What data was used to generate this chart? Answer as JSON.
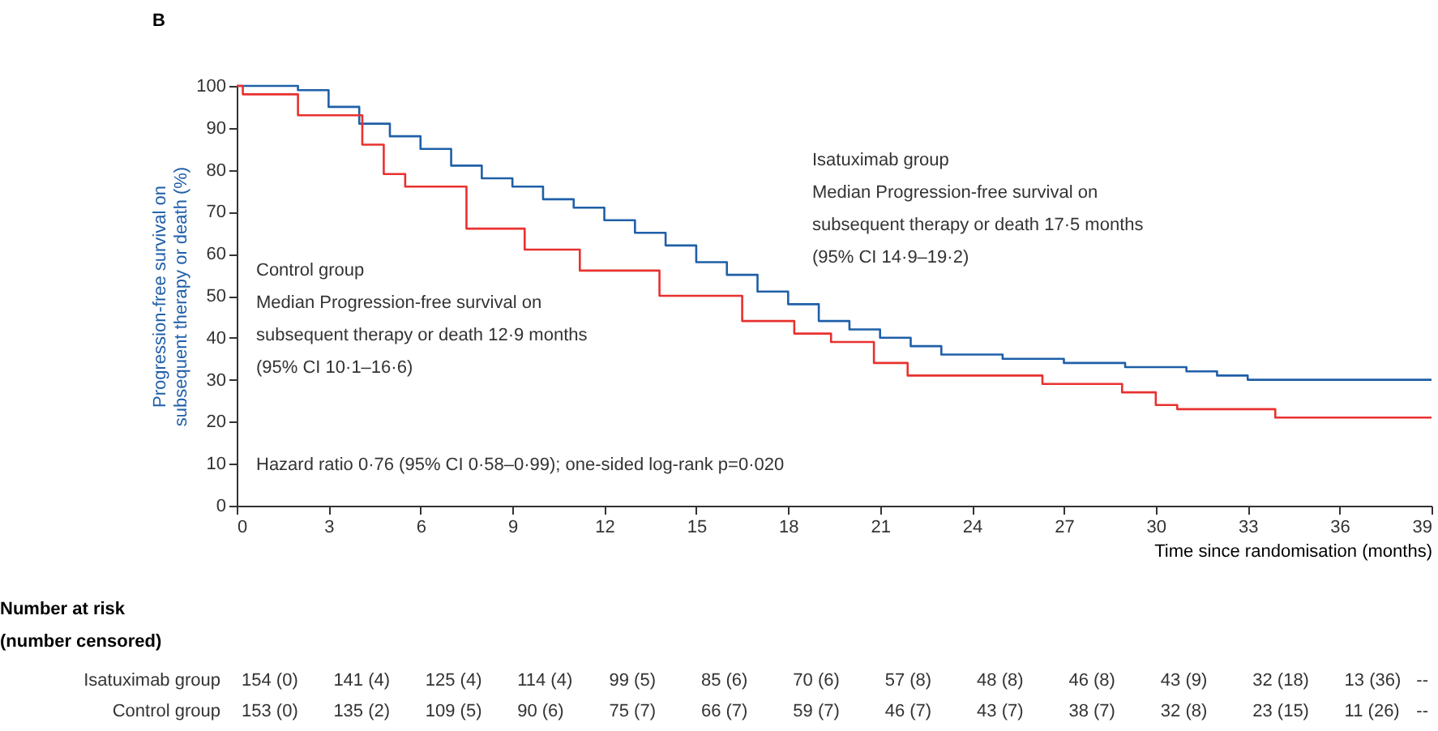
{
  "chart_data": {
    "type": "step",
    "title": "B",
    "xlabel": "Time since randomisation (months)",
    "ylabel": "Progression-free survival on\nsubsequent therapy or death (%)",
    "xlim": [
      0,
      39
    ],
    "xticks": [
      0,
      3,
      6,
      9,
      12,
      15,
      18,
      21,
      24,
      27,
      30,
      33,
      36,
      39
    ],
    "ylim": [
      0,
      100
    ],
    "yticks": [
      0,
      10,
      20,
      30,
      40,
      50,
      60,
      70,
      80,
      90,
      100
    ],
    "grid": false,
    "legend": false,
    "series": [
      {
        "color": "#1f5fa8",
        "x": [
          0,
          2,
          3,
          4,
          5,
          6,
          7,
          8,
          9,
          10,
          11,
          12,
          13,
          14,
          15,
          16,
          17,
          18,
          19,
          20,
          21,
          22,
          23,
          25,
          27,
          29,
          31,
          32,
          33,
          39
        ],
        "values": [
          100,
          99,
          95,
          91,
          88,
          85,
          81,
          78,
          76,
          73,
          71,
          68,
          65,
          62,
          58,
          55,
          51,
          48,
          44,
          42,
          40,
          38,
          36,
          35,
          34,
          33,
          32,
          31,
          30,
          30
        ]
      },
      {
        "color": "#e8312f",
        "x": [
          0,
          0.2,
          2,
          4.1,
          4.8,
          5.5,
          7.5,
          9.4,
          11.2,
          13.8,
          16.5,
          18.2,
          19.4,
          20.8,
          21.9,
          26.3,
          28.9,
          30,
          30.7,
          33.9,
          39
        ],
        "values": [
          100,
          98,
          93,
          86,
          79,
          76,
          66,
          61,
          56,
          50,
          44,
          41,
          39,
          34,
          31,
          29,
          27,
          24,
          23,
          21,
          21
        ]
      }
    ],
    "annotations": [
      "Isatuximab group\nMedian Progression-free survival on\n subsequent therapy or death 17·5 months\n(95% CI 14·9–19·2)",
      "Control group\nMedian Progression-free survival on\nsubsequent therapy or death 12·9 months\n(95% CI 10·1–16·6)",
      "Hazard ratio 0·76 (95% CI 0·58–0·99); one-sided log-rank p=0·020",
      "Number at risk\n(number censored)",
      "Isatuximab group",
      "154 (0)",
      "141 (4)",
      "125 (4)",
      "114 (4)",
      "99 (5)",
      "85 (6)",
      "70 (6)",
      "57 (8)",
      "48 (8)",
      "46 (8)",
      "43 (9)",
      "32 (18)",
      "13 (36)",
      "--",
      "Control group",
      "153 (0)",
      "135 (2)",
      "109 (5)",
      "90 (6)",
      "75 (7)",
      "66 (7)",
      "59 (7)",
      "46 (7)",
      "43 (7)",
      "38 (7)",
      "32 (8)",
      "23 (15)",
      "11 (26)",
      "--"
    ]
  }
}
